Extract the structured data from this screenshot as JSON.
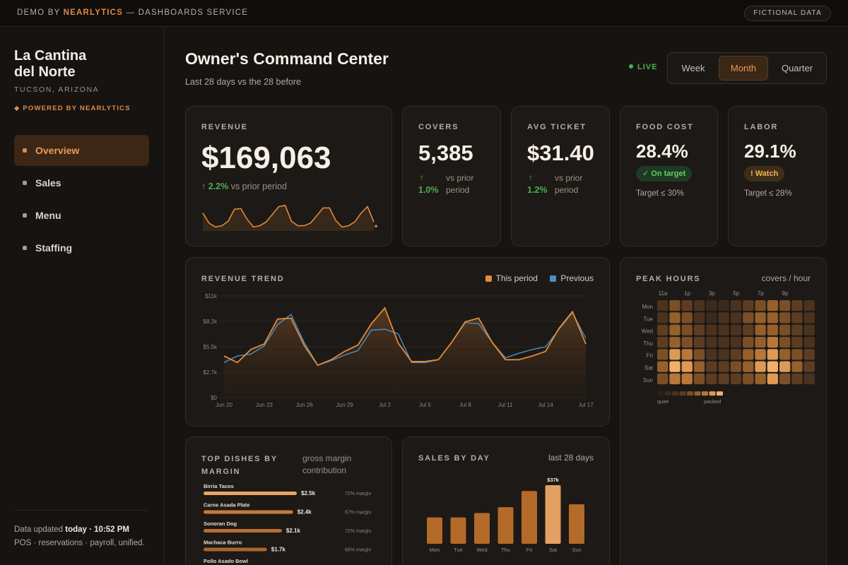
{
  "topbar": {
    "demo_prefix": "DEMO BY",
    "brand": "NEARLYTICS",
    "demo_suffix": "— DASHBOARDS SERVICE",
    "pill": "FICTIONAL DATA"
  },
  "sidebar": {
    "name_line1": "La Cantina",
    "name_line2": "del Norte",
    "location": "TUCSON, ARIZONA",
    "powered": "◆ POWERED BY NEARLYTICS",
    "items": [
      {
        "label": "Overview",
        "active": true
      },
      {
        "label": "Sales",
        "active": false
      },
      {
        "label": "Menu",
        "active": false
      },
      {
        "label": "Staffing",
        "active": false
      }
    ],
    "footer_prefix": "Data updated",
    "footer_time": "today · 10:52 PM",
    "footer_line2": "POS · reservations · payroll, unified."
  },
  "header": {
    "title": "Owner's Command Center",
    "subtitle": "Last 28 days vs the 28 before",
    "live": "LIVE",
    "periods": [
      "Week",
      "Month",
      "Quarter"
    ],
    "active_period": "Month"
  },
  "kpis": {
    "revenue": {
      "label": "REVENUE",
      "value": "$169,063",
      "delta": "↑ 2.2%",
      "delta_text": "vs prior period"
    },
    "covers": {
      "label": "COVERS",
      "value": "5,385",
      "arrow": "↑",
      "delta": "1.0%",
      "delta_text1": "vs prior",
      "delta_text2": "period"
    },
    "avg_ticket": {
      "label": "AVG TICKET",
      "value": "$31.40",
      "arrow": "↑",
      "delta": "1.2%",
      "delta_text1": "vs prior",
      "delta_text2": "period"
    },
    "food_cost": {
      "label": "FOOD COST",
      "value": "28.4%",
      "badge": "✓ On target",
      "target": "Target ≤ 30%"
    },
    "labor": {
      "label": "LABOR",
      "value": "29.1%",
      "badge": "! Watch",
      "target": "Target ≤ 28%"
    }
  },
  "sparkline": [
    7.6,
    6.0,
    5.4,
    5.6,
    6.3,
    8.2,
    8.3,
    6.6,
    5.4,
    5.6,
    6.2,
    7.4,
    8.6,
    8.8,
    6.3,
    5.6,
    5.6,
    6.0,
    7.2,
    8.4,
    8.4,
    6.4,
    5.4,
    5.6,
    6.2,
    7.6,
    8.6,
    6.2
  ],
  "revenue_trend": {
    "label": "REVENUE TREND",
    "legend_current": "This period",
    "legend_previous": "Previous",
    "colors": {
      "current": "#e08a3c",
      "previous": "#4a90c2"
    }
  },
  "chart_data": [
    {
      "type": "area",
      "title": "REVENUE TREND",
      "x": [
        "Jun 20",
        "Jun 21",
        "Jun 22",
        "Jun 23",
        "Jun 24",
        "Jun 25",
        "Jun 26",
        "Jun 27",
        "Jun 28",
        "Jun 29",
        "Jun 30",
        "Jul 1",
        "Jul 2",
        "Jul 3",
        "Jul 4",
        "Jul 5",
        "Jul 6",
        "Jul 7",
        "Jul 8",
        "Jul 9",
        "Jul 10",
        "Jul 11",
        "Jul 12",
        "Jul 13",
        "Jul 14",
        "Jul 15",
        "Jul 16",
        "Jul 17"
      ],
      "x_ticks": [
        "Jun 20",
        "Jun 23",
        "Jun 26",
        "Jun 29",
        "Jul 2",
        "Jul 5",
        "Jul 8",
        "Jul 11",
        "Jul 14",
        "Jul 17"
      ],
      "y_ticks": [
        "$0",
        "$2.7k",
        "$5.5k",
        "$8.2k",
        "$11k"
      ],
      "ylim": [
        0,
        11000
      ],
      "series": [
        {
          "name": "This period",
          "values": [
            4500,
            3800,
            5200,
            5800,
            8500,
            8600,
            5600,
            3500,
            4100,
            5000,
            5700,
            8000,
            9700,
            5900,
            3900,
            3900,
            4100,
            6000,
            8200,
            8600,
            6000,
            4100,
            4100,
            4500,
            5000,
            7500,
            9300,
            5800
          ]
        },
        {
          "name": "Previous",
          "values": [
            3800,
            4500,
            4700,
            5600,
            7900,
            9000,
            5900,
            3500,
            4000,
            4600,
            5100,
            7300,
            7400,
            6900,
            3800,
            3800,
            4100,
            6000,
            8100,
            8000,
            6000,
            4300,
            4800,
            5200,
            5500,
            7400,
            9200,
            6400
          ]
        }
      ]
    },
    {
      "type": "heatmap",
      "title": "PEAK HOURS",
      "subtitle": "covers / hour",
      "x_ticks": [
        "11a",
        "1p",
        "3p",
        "5p",
        "7p",
        "9p"
      ],
      "rows": [
        "Mon",
        "Tue",
        "Wed",
        "Thu",
        "Fri",
        "Sat",
        "Sun"
      ],
      "scale": [
        "quiet",
        "packed"
      ],
      "values": [
        [
          2,
          4,
          3,
          2,
          1,
          1,
          2,
          3,
          4,
          5,
          4,
          3,
          2
        ],
        [
          2,
          5,
          4,
          2,
          1,
          2,
          2,
          4,
          5,
          5,
          4,
          3,
          2
        ],
        [
          3,
          5,
          4,
          3,
          2,
          2,
          2,
          3,
          5,
          5,
          4,
          3,
          2
        ],
        [
          3,
          5,
          4,
          3,
          2,
          2,
          2,
          4,
          5,
          6,
          4,
          3,
          2
        ],
        [
          4,
          7,
          6,
          4,
          2,
          2,
          3,
          5,
          6,
          7,
          5,
          4,
          3
        ],
        [
          5,
          8,
          7,
          5,
          3,
          3,
          4,
          5,
          7,
          8,
          7,
          5,
          3
        ],
        [
          4,
          6,
          6,
          4,
          3,
          3,
          3,
          4,
          5,
          7,
          4,
          3,
          2
        ]
      ]
    },
    {
      "type": "bar",
      "title": "TOP DISHES BY MARGIN",
      "subtitle": "gross margin contribution",
      "categories": [
        "Birria Tacos",
        "Carne Asada Plate",
        "Sonoran Dog",
        "Machaca Burro",
        "Pollo Asado Bowl"
      ],
      "value_labels": [
        "$2.5k",
        "$2.4k",
        "$2.1k",
        "$1.7k",
        ""
      ],
      "values": [
        2.5,
        2.4,
        2.1,
        1.7,
        null
      ],
      "margin_labels": [
        "72% margin",
        "67% margin",
        "72% margin",
        "68% margin",
        ""
      ]
    },
    {
      "type": "bar",
      "title": "SALES BY DAY",
      "subtitle": "last 28 days",
      "categories": [
        "Mon",
        "Tue",
        "Wed",
        "Thu",
        "Fri",
        "Sat",
        "Sun"
      ],
      "values": [
        18,
        18,
        21,
        25,
        36,
        40,
        27
      ],
      "highlight_label": "$37k",
      "highlight_index": 5
    }
  ]
}
